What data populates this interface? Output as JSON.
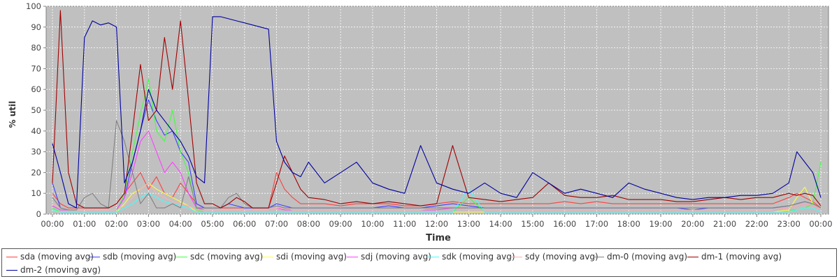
{
  "chart_data": {
    "type": "line",
    "title": "",
    "xlabel": "Time",
    "ylabel": "% util",
    "x_ticks": [
      "00:00",
      "01:00",
      "02:00",
      "03:00",
      "04:00",
      "05:00",
      "06:00",
      "07:00",
      "08:00",
      "09:00",
      "10:00",
      "11:00",
      "12:00",
      "13:00",
      "14:00",
      "15:00",
      "16:00",
      "17:00",
      "18:00",
      "19:00",
      "20:00",
      "21:00",
      "22:00",
      "23:00",
      "00:00"
    ],
    "y_ticks": [
      "0",
      "10",
      "20",
      "30",
      "40",
      "50",
      "60",
      "70",
      "80",
      "90",
      "100"
    ],
    "ylim": [
      0,
      100
    ],
    "grid": true,
    "legend_placement": "bottom",
    "x_hours": [
      0,
      0.25,
      0.5,
      0.75,
      1,
      1.25,
      1.5,
      1.75,
      2,
      2.25,
      2.5,
      2.75,
      3,
      3.25,
      3.5,
      3.75,
      4,
      4.25,
      4.5,
      4.75,
      5,
      5.25,
      5.5,
      5.75,
      6,
      6.25,
      6.5,
      6.75,
      7,
      7.25,
      7.5,
      7.75,
      8,
      8.5,
      9,
      9.5,
      10,
      10.5,
      11,
      11.5,
      12,
      12.5,
      13,
      13.5,
      14,
      14.5,
      15,
      15.5,
      16,
      16.5,
      17,
      17.5,
      18,
      18.5,
      19,
      19.5,
      20,
      20.5,
      21,
      21.5,
      22,
      22.5,
      23,
      23.25,
      23.5,
      23.75,
      24
    ],
    "series": [
      {
        "name": "sda (moving avg)",
        "color": "#ff4040",
        "values": [
          10,
          5,
          3,
          3,
          3,
          3,
          3,
          3,
          5,
          10,
          15,
          20,
          12,
          18,
          10,
          8,
          15,
          10,
          5,
          3,
          3,
          3,
          3,
          3,
          3,
          3,
          3,
          3,
          20,
          12,
          8,
          5,
          5,
          5,
          4,
          5,
          5,
          5,
          4,
          4,
          5,
          6,
          5,
          5,
          5,
          5,
          5,
          5,
          6,
          5,
          6,
          5,
          5,
          5,
          5,
          5,
          5,
          5,
          5,
          5,
          5,
          5,
          8,
          10,
          8,
          6,
          3
        ]
      },
      {
        "name": "sdb (moving avg)",
        "color": "#4040ff",
        "values": [
          15,
          3,
          2,
          2,
          2,
          2,
          2,
          2,
          2,
          8,
          25,
          40,
          55,
          45,
          38,
          40,
          30,
          25,
          5,
          3,
          3,
          3,
          5,
          4,
          3,
          3,
          3,
          3,
          5,
          4,
          3,
          3,
          3,
          3,
          3,
          3,
          3,
          4,
          3,
          3,
          4,
          5,
          4,
          3,
          3,
          3,
          3,
          3,
          3,
          3,
          3,
          3,
          3,
          3,
          3,
          3,
          2,
          3,
          3,
          3,
          3,
          3,
          4,
          5,
          6,
          5,
          3
        ]
      },
      {
        "name": "sdc (moving avg)",
        "color": "#40ff40",
        "values": [
          3,
          1,
          1,
          1,
          1,
          1,
          1,
          1,
          1,
          10,
          30,
          48,
          65,
          40,
          35,
          50,
          30,
          20,
          2,
          1,
          1,
          1,
          1,
          1,
          1,
          1,
          1,
          1,
          1,
          1,
          1,
          1,
          1,
          1,
          1,
          1,
          1,
          1,
          1,
          1,
          1,
          1,
          8,
          1,
          1,
          1,
          1,
          1,
          1,
          1,
          1,
          1,
          1,
          1,
          1,
          1,
          1,
          1,
          1,
          1,
          1,
          1,
          2,
          2,
          3,
          5,
          25
        ]
      },
      {
        "name": "sdi (moving avg)",
        "color": "#ffff40",
        "values": [
          2,
          1,
          1,
          1,
          1,
          1,
          1,
          1,
          1,
          5,
          10,
          12,
          15,
          12,
          10,
          8,
          6,
          4,
          1,
          1,
          1,
          1,
          1,
          1,
          1,
          1,
          1,
          1,
          1,
          1,
          1,
          1,
          1,
          1,
          1,
          1,
          1,
          1,
          1,
          1,
          1,
          1,
          1,
          1,
          1,
          1,
          1,
          1,
          1,
          1,
          1,
          1,
          1,
          1,
          1,
          1,
          1,
          1,
          1,
          1,
          1,
          1,
          2,
          8,
          13,
          5,
          3
        ]
      },
      {
        "name": "sdj (moving avg)",
        "color": "#ff40ff",
        "values": [
          4,
          2,
          2,
          2,
          2,
          2,
          2,
          2,
          2,
          8,
          20,
          35,
          40,
          30,
          20,
          25,
          20,
          10,
          3,
          2,
          2,
          2,
          2,
          2,
          2,
          2,
          2,
          2,
          3,
          2,
          2,
          2,
          2,
          2,
          2,
          2,
          2,
          2,
          2,
          2,
          2,
          3,
          2,
          2,
          2,
          2,
          2,
          2,
          2,
          2,
          2,
          2,
          2,
          2,
          2,
          2,
          2,
          2,
          2,
          2,
          2,
          2,
          3,
          4,
          5,
          4,
          2
        ]
      },
      {
        "name": "sdk (moving avg)",
        "color": "#40ffff",
        "values": [
          2,
          1,
          1,
          1,
          1,
          1,
          1,
          1,
          1,
          3,
          5,
          8,
          10,
          8,
          6,
          5,
          4,
          3,
          1,
          1,
          1,
          1,
          1,
          1,
          1,
          1,
          1,
          1,
          1,
          1,
          1,
          1,
          1,
          1,
          1,
          1,
          1,
          1,
          1,
          1,
          1,
          1,
          12,
          1,
          1,
          1,
          1,
          1,
          1,
          1,
          1,
          1,
          1,
          1,
          1,
          1,
          1,
          1,
          1,
          1,
          1,
          1,
          1,
          2,
          3,
          3,
          1
        ]
      },
      {
        "name": "sdy (moving avg)",
        "color": "#ffafaf",
        "values": [
          5,
          3,
          2,
          2,
          2,
          2,
          2,
          2,
          2,
          4,
          8,
          12,
          15,
          10,
          8,
          6,
          5,
          4,
          2,
          2,
          2,
          2,
          2,
          2,
          2,
          2,
          2,
          2,
          3,
          3,
          2,
          2,
          2,
          2,
          2,
          2,
          2,
          2,
          2,
          2,
          3,
          3,
          2,
          2,
          2,
          2,
          2,
          2,
          2,
          2,
          2,
          2,
          2,
          2,
          2,
          2,
          2,
          2,
          2,
          2,
          2,
          2,
          3,
          4,
          5,
          4,
          2
        ]
      },
      {
        "name": "dm-0 (moving avg)",
        "color": "#808080",
        "values": [
          8,
          3,
          2,
          2,
          8,
          10,
          5,
          3,
          45,
          35,
          20,
          5,
          10,
          3,
          3,
          5,
          3,
          18,
          3,
          3,
          3,
          3,
          8,
          10,
          5,
          3,
          3,
          3,
          4,
          3,
          3,
          3,
          3,
          3,
          3,
          3,
          3,
          3,
          3,
          3,
          3,
          3,
          3,
          3,
          3,
          3,
          3,
          3,
          3,
          3,
          3,
          3,
          3,
          3,
          3,
          3,
          3,
          3,
          3,
          3,
          3,
          3,
          4,
          5,
          6,
          5,
          3
        ]
      },
      {
        "name": "dm-1 (moving avg)",
        "color": "#a00000",
        "values": [
          15,
          98,
          20,
          5,
          3,
          3,
          3,
          3,
          5,
          10,
          40,
          72,
          45,
          50,
          85,
          60,
          93,
          55,
          15,
          5,
          5,
          3,
          5,
          8,
          6,
          3,
          3,
          3,
          15,
          28,
          20,
          12,
          8,
          7,
          5,
          6,
          5,
          6,
          5,
          4,
          5,
          33,
          8,
          7,
          6,
          7,
          8,
          15,
          9,
          8,
          8,
          9,
          7,
          7,
          7,
          6,
          6,
          7,
          8,
          7,
          8,
          8,
          10,
          9,
          10,
          9,
          4
        ]
      },
      {
        "name": "dm-2 (moving avg)",
        "color": "#0000a0",
        "values": [
          34,
          20,
          5,
          3,
          85,
          93,
          91,
          92,
          90,
          15,
          25,
          40,
          60,
          50,
          45,
          40,
          35,
          28,
          18,
          15,
          95,
          95,
          94,
          93,
          92,
          91,
          90,
          89,
          35,
          25,
          20,
          18,
          25,
          15,
          20,
          25,
          15,
          12,
          10,
          33,
          15,
          12,
          10,
          15,
          10,
          8,
          20,
          15,
          10,
          12,
          10,
          8,
          15,
          12,
          10,
          8,
          7,
          8,
          8,
          9,
          9,
          10,
          15,
          30,
          25,
          20,
          8
        ]
      }
    ]
  }
}
